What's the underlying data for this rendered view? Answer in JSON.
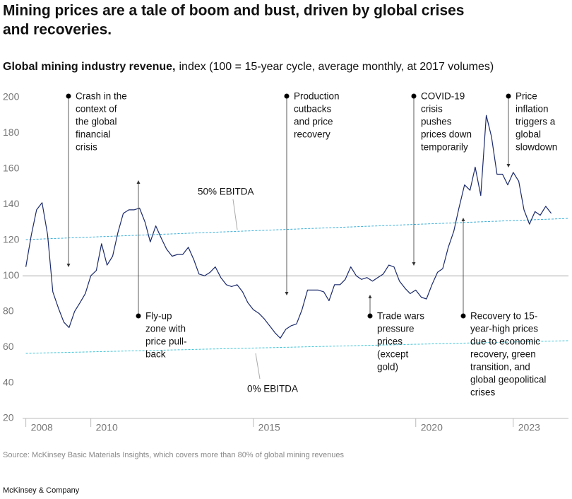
{
  "chart_data": {
    "type": "line",
    "title_lines": [
      "Mining prices are a tale of boom and bust, driven by global crises",
      "and recoveries."
    ],
    "subtitle_bold": "Global mining industry revenue,",
    "subtitle": "index (100 = 15-year cycle, average monthly, at 2017 volumes)",
    "x": [
      2008,
      2008.17,
      2008.33,
      2008.5,
      2008.67,
      2008.83,
      2009,
      2009.17,
      2009.33,
      2009.5,
      2009.67,
      2009.83,
      2010,
      2010.17,
      2010.33,
      2010.5,
      2010.67,
      2010.83,
      2011,
      2011.17,
      2011.33,
      2011.5,
      2011.67,
      2011.83,
      2012,
      2012.17,
      2012.33,
      2012.5,
      2012.67,
      2012.83,
      2013,
      2013.17,
      2013.33,
      2013.5,
      2013.67,
      2013.83,
      2014,
      2014.17,
      2014.33,
      2014.5,
      2014.67,
      2014.83,
      2015,
      2015.17,
      2015.33,
      2015.5,
      2015.67,
      2015.83,
      2016,
      2016.17,
      2016.33,
      2016.5,
      2016.67,
      2016.83,
      2017,
      2017.17,
      2017.33,
      2017.5,
      2017.67,
      2017.83,
      2018,
      2018.17,
      2018.33,
      2018.5,
      2018.67,
      2018.83,
      2019,
      2019.17,
      2019.33,
      2019.5,
      2019.67,
      2019.83,
      2020,
      2020.17,
      2020.33,
      2020.5,
      2020.67,
      2020.83,
      2021,
      2021.17,
      2021.33,
      2021.5,
      2021.67,
      2021.83,
      2022,
      2022.17,
      2022.33,
      2022.5,
      2022.67,
      2022.83,
      2023,
      2023.17,
      2023.33,
      2023.5,
      2023.67,
      2023.83,
      2024,
      2024.17
    ],
    "series": [
      {
        "color": "#1b2a6b",
        "values": [
          105,
          123,
          137,
          141,
          123,
          91,
          82,
          74,
          71,
          80,
          85,
          90,
          100,
          103,
          118,
          106,
          111,
          124,
          135,
          137,
          137,
          138,
          130,
          119,
          128,
          121,
          115,
          111,
          112,
          112,
          116,
          109,
          101,
          100,
          102,
          105,
          99,
          95,
          94,
          95,
          91,
          85,
          81,
          79,
          76,
          72,
          68,
          65,
          70,
          72,
          73,
          81,
          92,
          92,
          92,
          91,
          86,
          95,
          95,
          98,
          105,
          100,
          98,
          99,
          97,
          99,
          101,
          106,
          105,
          97,
          93,
          90,
          92,
          88,
          87,
          95,
          102,
          104,
          116,
          125,
          138,
          151,
          148,
          161,
          145,
          190,
          178,
          157,
          157,
          151,
          158,
          153,
          137,
          129,
          136,
          134,
          139,
          135
        ]
      }
    ],
    "xlim": [
      2007.9,
      2024.7
    ],
    "xticks": [
      2008,
      2010,
      2015,
      2020,
      2023
    ],
    "ylim": [
      20,
      200
    ],
    "yticks": [
      20,
      40,
      60,
      80,
      100,
      120,
      140,
      160,
      180,
      200
    ],
    "reference_y": 100,
    "reference_lines": [
      {
        "label": "50% EBITDA",
        "values": [
          120.3,
          132.2
        ],
        "color": "#3aaed8"
      },
      {
        "label": "0% EBITDA",
        "values": [
          56.5,
          63.6
        ],
        "color": "#3fc3d6"
      }
    ],
    "annotations": [
      {
        "lines": [
          "Crash in the",
          "context of",
          "the global",
          "financial",
          "crisis"
        ]
      },
      {
        "lines": [
          "Fly-up",
          "zone with",
          "price pull-",
          "back"
        ]
      },
      {
        "lines": [
          "Production",
          "cutbacks",
          "and price",
          "recovery"
        ]
      },
      {
        "lines": [
          "Trade wars",
          "pressure",
          "prices",
          "(except",
          "gold)"
        ]
      },
      {
        "lines": [
          "COVID-19",
          "crisis",
          "pushes",
          "prices down",
          "temporarily"
        ]
      },
      {
        "lines": [
          "Recovery to 15-",
          "year-high prices",
          "due to economic",
          "recovery, green",
          "transition, and",
          "global geopolitical",
          "crises"
        ]
      },
      {
        "lines": [
          "Price",
          "inflation",
          "triggers a",
          "global",
          "slowdown"
        ]
      }
    ],
    "source": "Source: McKinsey Basic Materials Insights, which covers more than 80% of global mining revenues",
    "footer": "McKinsey & Company"
  }
}
